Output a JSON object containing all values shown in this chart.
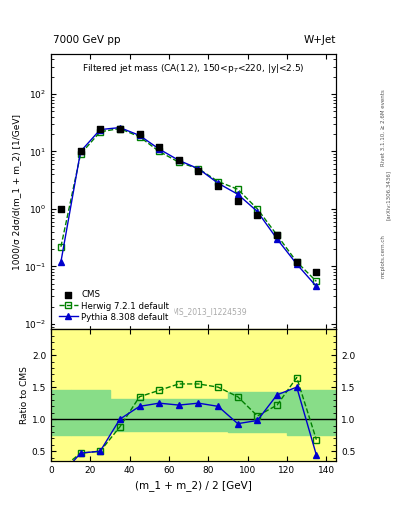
{
  "title_top": "7000 GeV pp",
  "title_right": "W+Jet",
  "plot_title": "Filtered jet mass (CA(1.2), 150<p$_T$<220, |y|<2.5)",
  "xlabel": "(m_1 + m_2) / 2 [GeV]",
  "ylabel_main": "1000/σ 2dσ/d(m_1 + m_2) [1/GeV]",
  "ylabel_ratio": "Ratio to CMS",
  "watermark": "CMS_2013_I1224539",
  "rivet_label": "Rivet 3.1.10, ≥ 2.6M events",
  "arxiv_label": "[arXiv:1306.3436]",
  "mcplots_label": "mcplots.cern.ch",
  "cms_x": [
    5,
    15,
    25,
    35,
    45,
    55,
    65,
    75,
    85,
    95,
    105,
    115,
    125,
    135
  ],
  "cms_y": [
    1.0,
    10.0,
    25.0,
    25.0,
    20.0,
    12.0,
    7.0,
    4.5,
    2.5,
    1.4,
    0.8,
    0.35,
    0.12,
    0.08
  ],
  "herwig_x": [
    5,
    15,
    25,
    35,
    45,
    55,
    65,
    75,
    85,
    95,
    105,
    115,
    125,
    135
  ],
  "herwig_y": [
    0.22,
    9.0,
    22.0,
    25.0,
    18.0,
    10.0,
    6.5,
    5.0,
    3.0,
    2.2,
    1.0,
    0.35,
    0.12,
    0.055
  ],
  "pythia_x": [
    5,
    15,
    25,
    35,
    45,
    55,
    65,
    75,
    85,
    95,
    105,
    115,
    125,
    135
  ],
  "pythia_y": [
    0.12,
    10.0,
    24.0,
    26.0,
    19.0,
    11.0,
    7.0,
    5.0,
    2.8,
    1.8,
    0.9,
    0.3,
    0.11,
    0.045
  ],
  "herwig_ratio_x": [
    5,
    15,
    25,
    35,
    45,
    55,
    65,
    75,
    85,
    95,
    105,
    115,
    125,
    135
  ],
  "herwig_ratio": [
    0.22,
    0.47,
    0.5,
    0.88,
    1.35,
    1.45,
    1.55,
    1.55,
    1.5,
    1.35,
    1.05,
    1.22,
    1.65,
    0.68
  ],
  "pythia_ratio_x": [
    5,
    15,
    25,
    35,
    45,
    55,
    65,
    75,
    85,
    95,
    105,
    115,
    125,
    135
  ],
  "pythia_ratio": [
    0.12,
    0.47,
    0.5,
    1.0,
    1.2,
    1.25,
    1.22,
    1.25,
    1.2,
    0.93,
    0.98,
    1.38,
    1.5,
    0.44
  ],
  "cms_color": "#000000",
  "herwig_color": "#008000",
  "pythia_color": "#0000cc",
  "bg_yellow": "#ffff88",
  "bg_green": "#88dd88",
  "ylim_main": [
    0.008,
    500
  ],
  "ylim_ratio": [
    0.35,
    2.4
  ],
  "xlim": [
    0,
    145
  ],
  "green_x_edges": [
    0,
    10,
    30,
    90,
    120,
    145
  ],
  "green_lo": [
    0.75,
    0.75,
    0.82,
    0.8,
    0.75,
    0.75
  ],
  "green_hi": [
    1.45,
    1.45,
    1.32,
    1.42,
    1.45,
    1.45
  ]
}
